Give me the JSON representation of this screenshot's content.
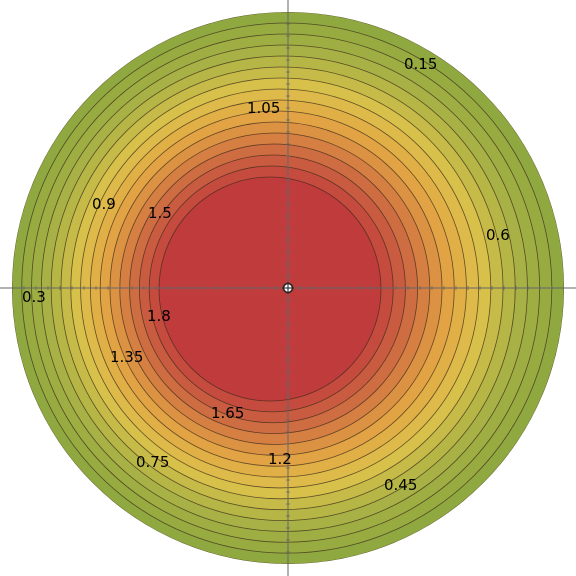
{
  "chart_data": {
    "type": "contour",
    "plot_shape": "disk",
    "levels": [
      0.15,
      0.3,
      0.45,
      0.6,
      0.75,
      0.9,
      1.05,
      1.2,
      1.35,
      1.5,
      1.65,
      1.8
    ],
    "level_labels": [
      "0.15",
      "1.05",
      "0.9",
      "1.5",
      "0.6",
      "0.3",
      "1.8",
      "1.35",
      "1.65",
      "0.75",
      "1.2",
      "0.45"
    ],
    "colors": {
      "outer": "#8fa840",
      "mid_green": "#a9b245",
      "yellow": "#dcc24a",
      "orange": "#e2a144",
      "red_orange": "#cd6a42",
      "inner": "#c03b3c",
      "contour_line": "#3a2a1a",
      "axis": "#666666"
    },
    "center_marker": "crosshair-circle",
    "axes": "crosshair through disk center",
    "grid": false,
    "legend": "none"
  }
}
